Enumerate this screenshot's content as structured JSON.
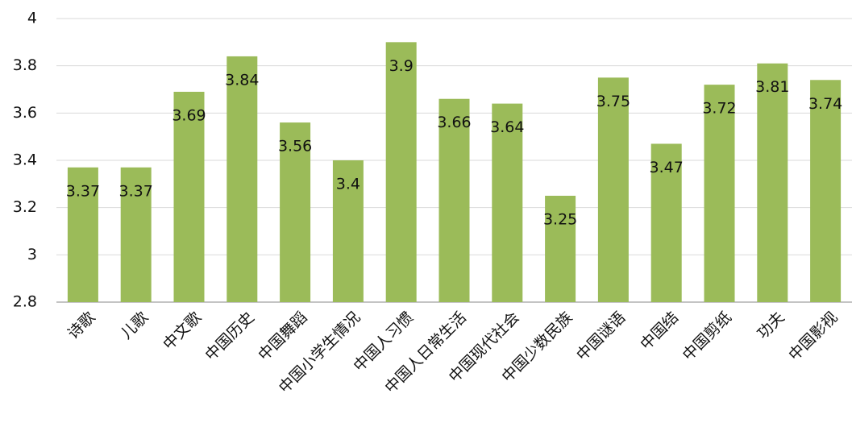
{
  "chart_data": {
    "type": "bar",
    "categories": [
      "诗歌",
      "儿歌",
      "中文歌",
      "中国历史",
      "中国舞蹈",
      "中国小学生情况",
      "中国人习惯",
      "中国人日常生活",
      "中国现代社会",
      "中国少数民族",
      "中国谜语",
      "中国结",
      "中国剪纸",
      "功夫",
      "中国影视"
    ],
    "values": [
      3.37,
      3.37,
      3.69,
      3.84,
      3.56,
      3.4,
      3.9,
      3.66,
      3.64,
      3.25,
      3.75,
      3.47,
      3.72,
      3.81,
      3.74
    ],
    "color": "#9bbb59",
    "ylim": [
      2.8,
      4
    ],
    "yticks": [
      2.8,
      3,
      3.2,
      3.4,
      3.6,
      3.8,
      4
    ],
    "grid": true
  }
}
